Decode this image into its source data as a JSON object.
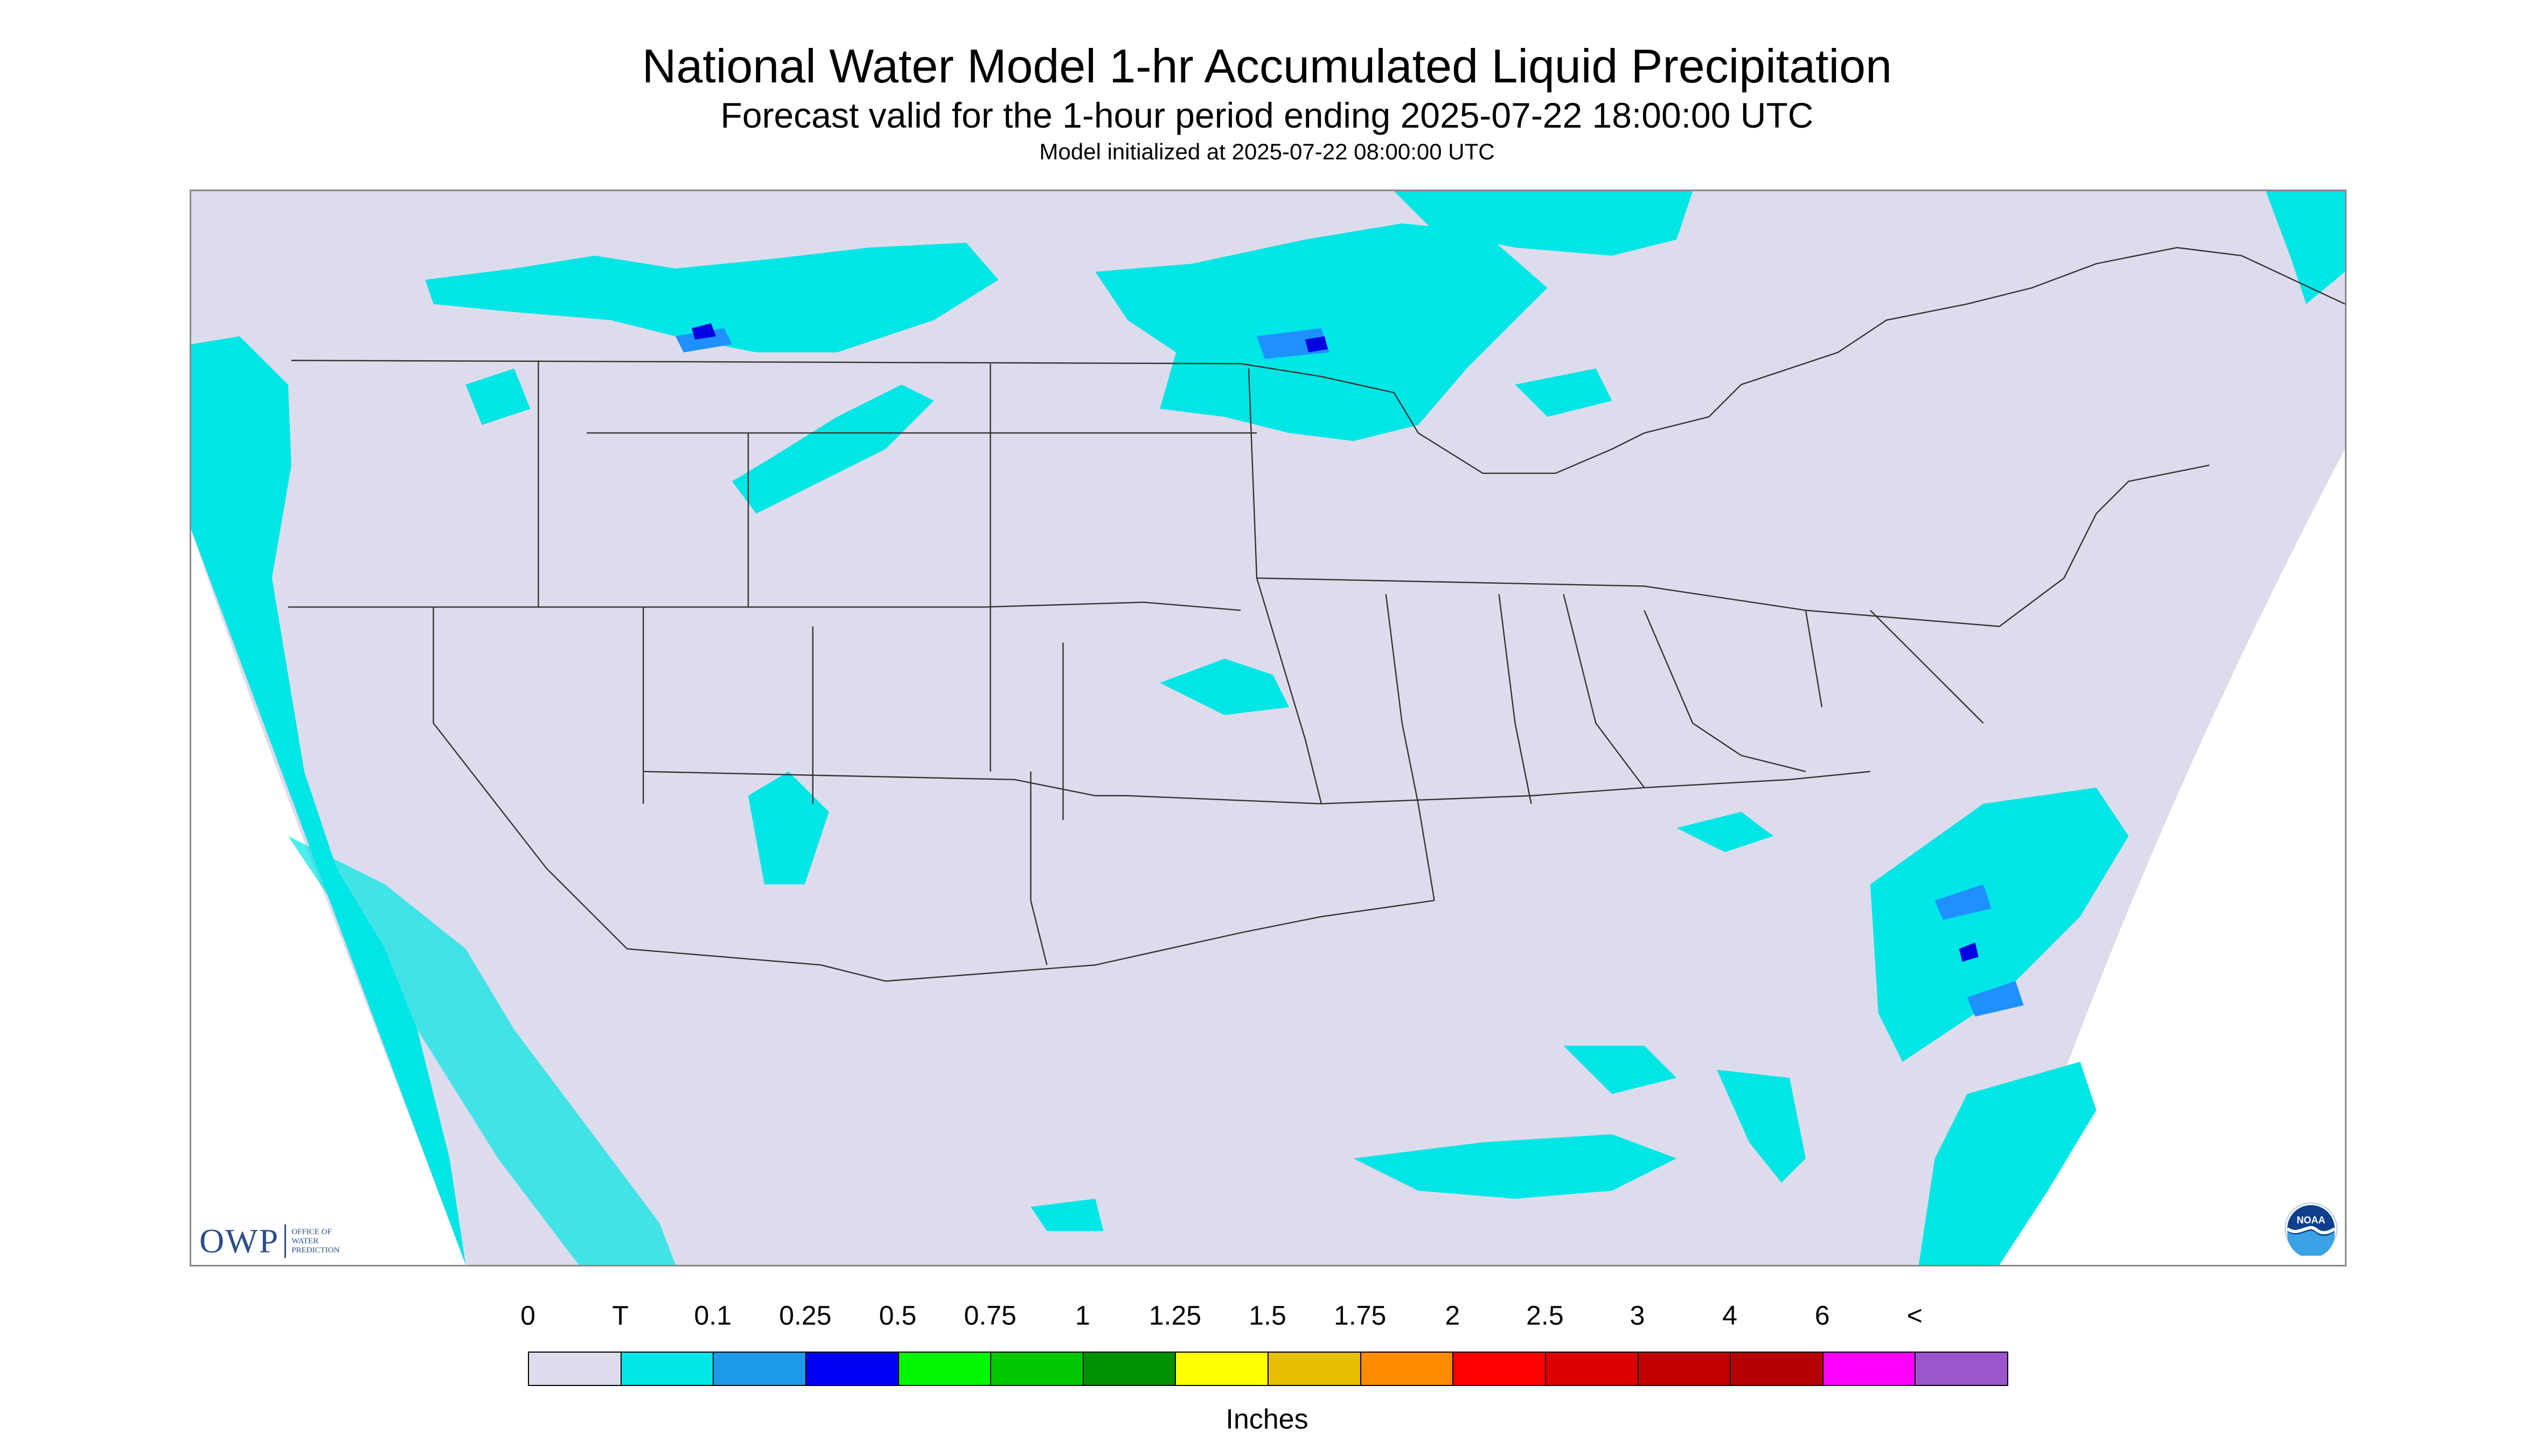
{
  "header": {
    "title": "National Water Model 1-hr Accumulated Liquid Precipitation",
    "subtitle": "Forecast valid for the 1-hour period ending 2025-07-22 18:00:00 UTC",
    "model_init": "Model initialized at 2025-07-22 08:00:00 UTC"
  },
  "map": {
    "background_color": "#dcdcec",
    "light_precip_color": "#00e5e5",
    "moderate_precip_color": "#1e90ff",
    "heavy_precip_color": "#0000e0"
  },
  "logos": {
    "owp_letters": "OWP",
    "owp_name_lines": [
      "OFFICE OF",
      "WATER",
      "PREDICTION"
    ],
    "noaa_text": "NOAA"
  },
  "legend": {
    "labels": [
      "0",
      "T",
      "0.1",
      "0.25",
      "0.5",
      "0.75",
      "1",
      "1.25",
      "1.5",
      "1.75",
      "2",
      "2.5",
      "3",
      "4",
      "6",
      "<"
    ],
    "colors": [
      "#dcdcec",
      "#00e5e5",
      "#1e9be8",
      "#0000f5",
      "#00f500",
      "#00c800",
      "#009000",
      "#ffff00",
      "#e6bf00",
      "#ff8c00",
      "#ff0000",
      "#dd0000",
      "#c20000",
      "#b40000",
      "#ff00ff",
      "#9955cc"
    ],
    "units": "Inches"
  }
}
